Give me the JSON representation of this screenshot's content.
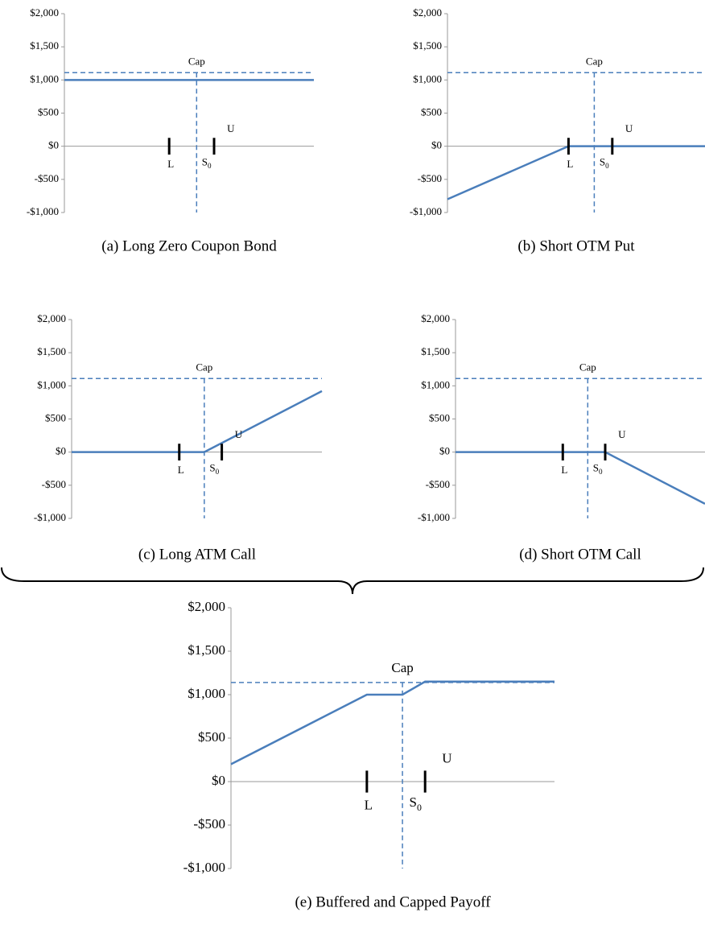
{
  "chart_data": [
    {
      "type": "line",
      "caption": "(a) Long Zero Coupon Bond",
      "ylim": [
        -1000,
        2000
      ],
      "xlim": [
        0,
        100
      ],
      "yticks": [
        {
          "value": 2000,
          "label": "$2,000"
        },
        {
          "value": 1500,
          "label": "$1,500"
        },
        {
          "value": 1000,
          "label": "$1,000"
        },
        {
          "value": 500,
          "label": "$500"
        },
        {
          "value": 0,
          "label": "$0"
        },
        {
          "value": -500,
          "label": "-$500"
        },
        {
          "value": -1000,
          "label": "-$1,000"
        }
      ],
      "series": [
        {
          "color": "#4a7ebb",
          "x": [
            0,
            100
          ],
          "values": [
            1000,
            1000
          ]
        }
      ],
      "cap": {
        "label": "Cap",
        "value": 1110
      },
      "s0": {
        "label": "S",
        "subscript": "0",
        "x": 53
      },
      "markers": [
        {
          "label": "L",
          "x": 42
        },
        {
          "label": "U",
          "x": 60
        }
      ]
    },
    {
      "type": "line",
      "caption": "(b) Short OTM Put",
      "ylim": [
        -1000,
        2000
      ],
      "xlim": [
        0,
        100
      ],
      "yticks": [
        {
          "value": 2000,
          "label": "$2,000"
        },
        {
          "value": 1500,
          "label": "$1,500"
        },
        {
          "value": 1000,
          "label": "$1,000"
        },
        {
          "value": 500,
          "label": "$500"
        },
        {
          "value": 0,
          "label": "$0"
        },
        {
          "value": -500,
          "label": "-$500"
        },
        {
          "value": -1000,
          "label": "-$1,000"
        }
      ],
      "series": [
        {
          "color": "#4a7ebb",
          "x": [
            0,
            47,
            100
          ],
          "values": [
            -800,
            0,
            0
          ]
        }
      ],
      "cap": {
        "label": "Cap",
        "value": 1110
      },
      "s0": {
        "label": "S",
        "subscript": "0",
        "x": 57
      },
      "markers": [
        {
          "label": "L",
          "x": 47
        },
        {
          "label": "U",
          "x": 64
        }
      ]
    },
    {
      "type": "line",
      "caption": "(c) Long ATM Call",
      "ylim": [
        -1000,
        2000
      ],
      "xlim": [
        0,
        100
      ],
      "yticks": [
        {
          "value": 2000,
          "label": "$2,000"
        },
        {
          "value": 1500,
          "label": "$1,500"
        },
        {
          "value": 1000,
          "label": "$1,000"
        },
        {
          "value": 500,
          "label": "$500"
        },
        {
          "value": 0,
          "label": "$0"
        },
        {
          "value": -500,
          "label": "-$500"
        },
        {
          "value": -1000,
          "label": "-$1,000"
        }
      ],
      "series": [
        {
          "color": "#4a7ebb",
          "x": [
            0,
            53,
            100
          ],
          "values": [
            0,
            0,
            920
          ]
        }
      ],
      "cap": {
        "label": "Cap",
        "value": 1110
      },
      "s0": {
        "label": "S",
        "subscript": "0",
        "x": 53
      },
      "markers": [
        {
          "label": "L",
          "x": 43
        },
        {
          "label": "U",
          "x": 60
        }
      ]
    },
    {
      "type": "line",
      "caption": "(d) Short OTM Call",
      "ylim": [
        -1000,
        2000
      ],
      "xlim": [
        0,
        100
      ],
      "yticks": [
        {
          "value": 2000,
          "label": "$2,000"
        },
        {
          "value": 1500,
          "label": "$1,500"
        },
        {
          "value": 1000,
          "label": "$1,000"
        },
        {
          "value": 500,
          "label": "$500"
        },
        {
          "value": 0,
          "label": "$0"
        },
        {
          "value": -500,
          "label": "-$500"
        },
        {
          "value": -1000,
          "label": "-$1,000"
        }
      ],
      "series": [
        {
          "color": "#4a7ebb",
          "x": [
            0,
            60,
            100
          ],
          "values": [
            0,
            0,
            -780
          ]
        }
      ],
      "cap": {
        "label": "Cap",
        "value": 1110
      },
      "s0": {
        "label": "S",
        "subscript": "0",
        "x": 53
      },
      "markers": [
        {
          "label": "L",
          "x": 43
        },
        {
          "label": "U",
          "x": 60
        }
      ]
    },
    {
      "type": "line",
      "caption": "(e) Buffered and Capped Payoff",
      "ylim": [
        -1000,
        2000
      ],
      "xlim": [
        0,
        100
      ],
      "yticks": [
        {
          "value": 2000,
          "label": "$2,000"
        },
        {
          "value": 1500,
          "label": "$1,500"
        },
        {
          "value": 1000,
          "label": "$1,000"
        },
        {
          "value": 500,
          "label": "$500"
        },
        {
          "value": 0,
          "label": "$0"
        },
        {
          "value": -500,
          "label": "-$500"
        },
        {
          "value": -1000,
          "label": "-$1,000"
        }
      ],
      "series": [
        {
          "color": "#4a7ebb",
          "x": [
            0,
            42,
            53,
            60,
            100
          ],
          "values": [
            200,
            1000,
            1000,
            1150,
            1150
          ]
        }
      ],
      "cap": {
        "label": "Cap",
        "value": 1140
      },
      "s0": {
        "label": "S",
        "subscript": "0",
        "x": 53
      },
      "markers": [
        {
          "label": "L",
          "x": 42
        },
        {
          "label": "U",
          "x": 60
        }
      ]
    }
  ]
}
